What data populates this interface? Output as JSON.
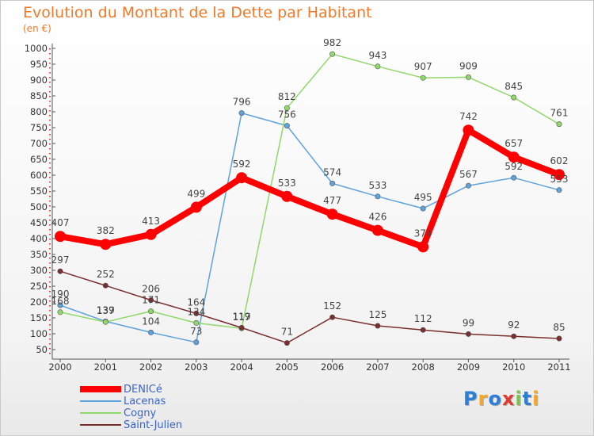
{
  "title": "Evolution du Montant de la Dette par Habitant",
  "unit_label": "(en €)",
  "logo": {
    "text": "Proxiti",
    "letter_colors": [
      "#2b7fd6",
      "#f5a623",
      "#2b7fd6",
      "#e03a2f",
      "#7cc24d",
      "#2b7fd6",
      "#f5a623"
    ]
  },
  "chart_data": {
    "type": "line",
    "x": [
      "2000",
      "2001",
      "2002",
      "2003",
      "2004",
      "2005",
      "2006",
      "2007",
      "2008",
      "2009",
      "2010",
      "2011"
    ],
    "ylim": [
      50,
      1000
    ],
    "yticks": [
      50,
      100,
      150,
      200,
      250,
      300,
      350,
      400,
      450,
      500,
      550,
      600,
      650,
      700,
      750,
      800,
      850,
      900,
      950,
      1000
    ],
    "grid": false,
    "legend_position": "bottom-left",
    "series": [
      {
        "name": "DENICé",
        "color": "#ff0000",
        "emphasis": true,
        "values": [
          407,
          382,
          413,
          499,
          592,
          533,
          477,
          426,
          374,
          742,
          657,
          602
        ]
      },
      {
        "name": "Lacenas",
        "color": "#5fa3dc",
        "values": [
          190,
          139,
          104,
          73,
          796,
          756,
          574,
          533,
          495,
          567,
          592,
          553
        ]
      },
      {
        "name": "Cogny",
        "color": "#8fd86a",
        "values": [
          168,
          137,
          171,
          134,
          117,
          812,
          982,
          943,
          907,
          909,
          845,
          761
        ]
      },
      {
        "name": "Saint-Julien",
        "color": "#7a2e2e",
        "values": [
          297,
          252,
          206,
          164,
          119,
          71,
          152,
          125,
          112,
          99,
          92,
          85
        ]
      }
    ]
  }
}
